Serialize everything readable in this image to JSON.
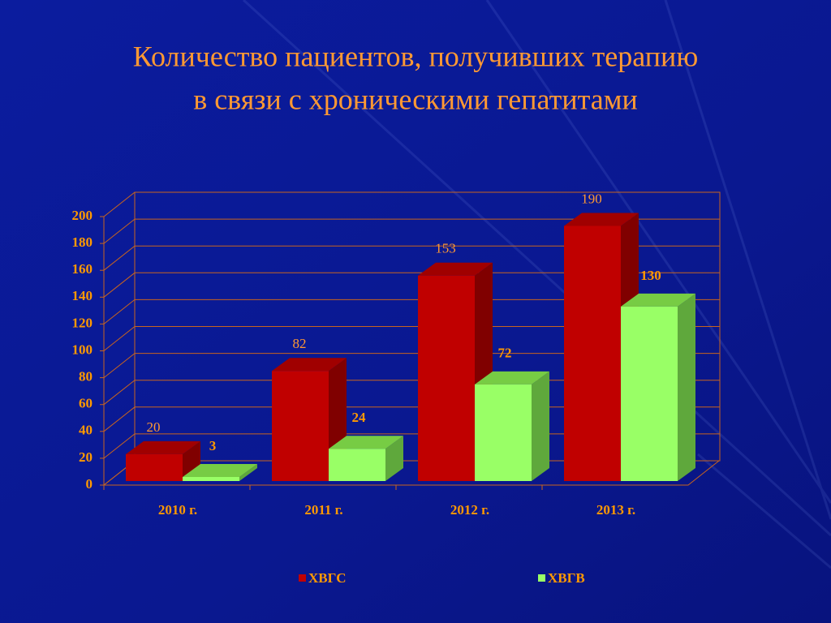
{
  "chart_data": {
    "type": "bar3d",
    "title": [
      "Количество пациентов, получивших терапию",
      "в связи с хроническими гепатитами"
    ],
    "categories": [
      "2010 г.",
      "2011 г.",
      "2012 г.",
      "2013 г."
    ],
    "series": [
      {
        "name": "ХВГС",
        "color": "#c00000",
        "values": [
          20,
          82,
          153,
          190
        ]
      },
      {
        "name": "ХВГВ",
        "color": "#99ff66",
        "values": [
          3,
          24,
          72,
          130
        ]
      }
    ],
    "ylim": [
      0,
      200
    ],
    "yticks": [
      0,
      20,
      40,
      60,
      80,
      100,
      120,
      140,
      160,
      180,
      200
    ],
    "grid": true
  }
}
